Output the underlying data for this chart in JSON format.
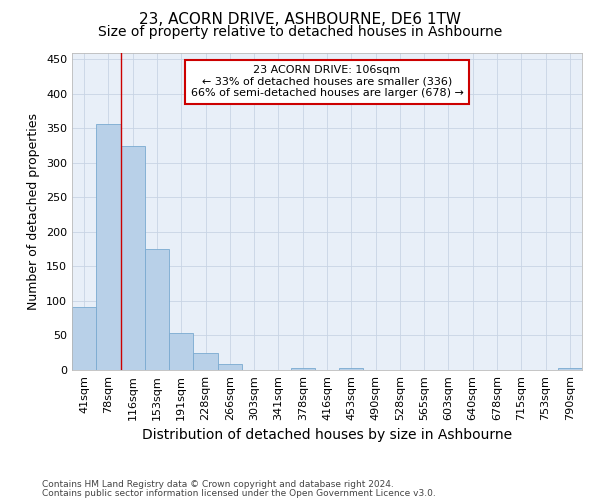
{
  "title": "23, ACORN DRIVE, ASHBOURNE, DE6 1TW",
  "subtitle": "Size of property relative to detached houses in Ashbourne",
  "xlabel": "Distribution of detached houses by size in Ashbourne",
  "ylabel": "Number of detached properties",
  "bar_labels": [
    "41sqm",
    "78sqm",
    "116sqm",
    "153sqm",
    "191sqm",
    "228sqm",
    "266sqm",
    "303sqm",
    "341sqm",
    "378sqm",
    "416sqm",
    "453sqm",
    "490sqm",
    "528sqm",
    "565sqm",
    "603sqm",
    "640sqm",
    "678sqm",
    "715sqm",
    "753sqm",
    "790sqm"
  ],
  "bar_values": [
    91,
    356,
    325,
    175,
    53,
    25,
    8,
    0,
    0,
    3,
    0,
    3,
    0,
    0,
    0,
    0,
    0,
    0,
    0,
    0,
    3
  ],
  "bar_color": "#b8d0e8",
  "bar_edge_color": "#7aaad0",
  "ylim": [
    0,
    460
  ],
  "yticks": [
    0,
    50,
    100,
    150,
    200,
    250,
    300,
    350,
    400,
    450
  ],
  "grid_color": "#c8d4e4",
  "bg_color": "#e8eff8",
  "red_line_x": 2.0,
  "annotation_text": "23 ACORN DRIVE: 106sqm\n← 33% of detached houses are smaller (336)\n66% of semi-detached houses are larger (678) →",
  "annotation_box_color": "#cc0000",
  "footer_line1": "Contains HM Land Registry data © Crown copyright and database right 2024.",
  "footer_line2": "Contains public sector information licensed under the Open Government Licence v3.0.",
  "title_fontsize": 11,
  "subtitle_fontsize": 10,
  "xlabel_fontsize": 10,
  "ylabel_fontsize": 9,
  "tick_fontsize": 8,
  "annotation_fontsize": 8,
  "footer_fontsize": 6.5
}
